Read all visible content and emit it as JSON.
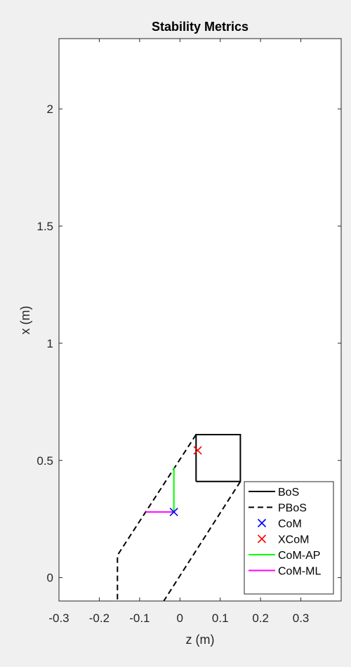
{
  "chart_data": {
    "type": "line",
    "title": "Stability Metrics",
    "xlabel": "z (m)",
    "ylabel": "x (m)",
    "xlim": [
      -0.3,
      0.4
    ],
    "ylim": [
      -0.1,
      2.3
    ],
    "xticks": [
      -0.3,
      -0.2,
      -0.1,
      0,
      0.1,
      0.2,
      0.3
    ],
    "xtick_labels": [
      "-0.3",
      "-0.2",
      "-0.1",
      "0",
      "0.1",
      "0.2",
      "0.3"
    ],
    "yticks": [
      0,
      0.5,
      1,
      1.5,
      2
    ],
    "ytick_labels": [
      "0",
      "0.5",
      "1",
      "1.5",
      "2"
    ],
    "grid": false,
    "legend_position": "bottom-right",
    "series": [
      {
        "name": "BoS",
        "style": "solid",
        "color": "#000000",
        "points": [
          [
            0.04,
            0.41
          ],
          [
            0.15,
            0.41
          ],
          [
            0.15,
            0.61
          ],
          [
            0.04,
            0.61
          ],
          [
            0.04,
            0.41
          ]
        ]
      },
      {
        "name": "PBoS",
        "style": "dashed",
        "color": "#000000",
        "segments": [
          [
            [
              0.04,
              0.61
            ],
            [
              -0.155,
              0.095
            ],
            [
              -0.155,
              -0.1
            ]
          ],
          [
            [
              0.15,
              0.41
            ],
            [
              -0.04,
              -0.1
            ]
          ]
        ]
      },
      {
        "name": "CoM",
        "style": "marker-x",
        "color": "#0000ff",
        "points": [
          [
            -0.015,
            0.28
          ]
        ]
      },
      {
        "name": "XCoM",
        "style": "marker-x",
        "color": "#ff0000",
        "points": [
          [
            0.044,
            0.543
          ]
        ]
      },
      {
        "name": "CoM-AP",
        "style": "solid",
        "color": "#00ff00",
        "points": [
          [
            -0.015,
            0.28
          ],
          [
            -0.015,
            0.47
          ]
        ]
      },
      {
        "name": "CoM-ML",
        "style": "solid",
        "color": "#ff00ff",
        "points": [
          [
            -0.085,
            0.28
          ],
          [
            -0.015,
            0.28
          ]
        ]
      }
    ]
  }
}
